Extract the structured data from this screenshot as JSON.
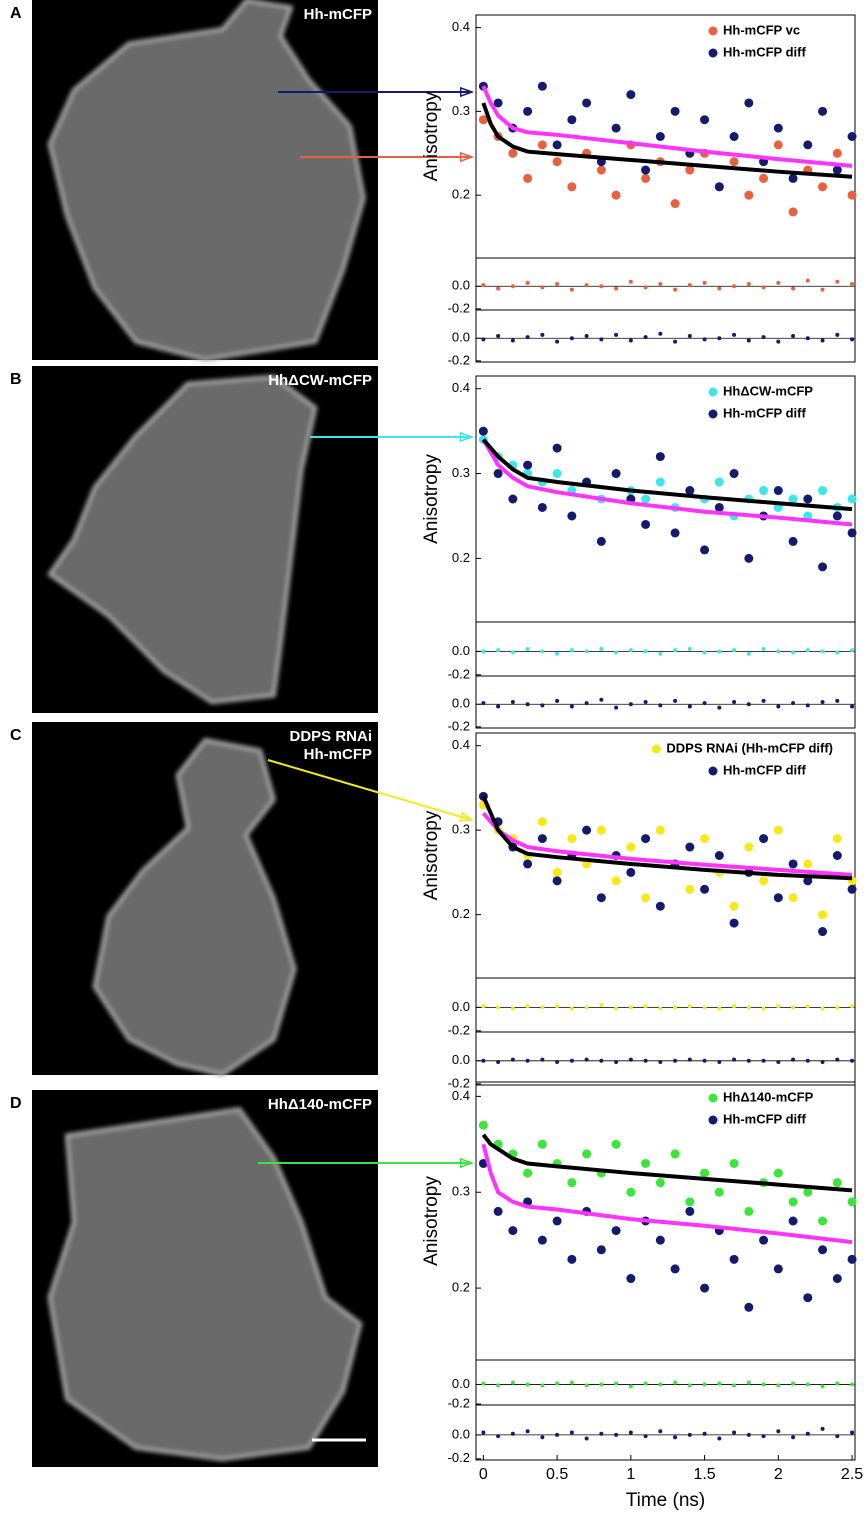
{
  "chart_data": [
    {
      "type": "scatter",
      "panel_label": "A",
      "image_label": [
        "Hh-mCFP"
      ],
      "y_label": "Anisotropy",
      "xlim": [
        -0.05,
        2.52
      ],
      "ylim": [
        0.125,
        0.415
      ],
      "yticks": [
        0.2,
        0.3,
        0.4
      ],
      "x": [
        0,
        0.1,
        0.2,
        0.3,
        0.4,
        0.5,
        0.6,
        0.7,
        0.8,
        0.9,
        1,
        1.1,
        1.2,
        1.3,
        1.4,
        1.5,
        1.6,
        1.7,
        1.8,
        1.9,
        2,
        2.1,
        2.2,
        2.3,
        2.4,
        2.5
      ],
      "series": [
        {
          "name": "Hh-mCFP vc",
          "color": "#e8603c",
          "values": [
            0.29,
            0.27,
            0.25,
            0.22,
            0.26,
            0.24,
            0.21,
            0.25,
            0.23,
            0.2,
            0.26,
            0.22,
            0.24,
            0.19,
            0.23,
            0.25,
            0.21,
            0.24,
            0.2,
            0.22,
            0.26,
            0.18,
            0.23,
            0.21,
            0.25,
            0.2
          ]
        },
        {
          "name": "Hh-mCFP diff",
          "color": "#141a6e",
          "values": [
            0.33,
            0.31,
            0.28,
            0.3,
            0.33,
            0.26,
            0.29,
            0.31,
            0.24,
            0.28,
            0.32,
            0.23,
            0.27,
            0.3,
            0.25,
            0.29,
            0.21,
            0.27,
            0.31,
            0.24,
            0.28,
            0.22,
            0.26,
            0.3,
            0.23,
            0.27
          ]
        }
      ],
      "fit_x": [
        0,
        0.05,
        0.1,
        0.2,
        0.3,
        0.5,
        1,
        1.5,
        2,
        2.5
      ],
      "fits": [
        {
          "color": "#ff33ff",
          "values": [
            0.33,
            0.31,
            0.295,
            0.28,
            0.275,
            0.272,
            0.262,
            0.252,
            0.243,
            0.235
          ]
        },
        {
          "color": "#000000",
          "values": [
            0.31,
            0.285,
            0.27,
            0.258,
            0.252,
            0.249,
            0.242,
            0.235,
            0.228,
            0.222
          ]
        }
      ],
      "residual_ylim": [
        -0.21,
        0.25
      ],
      "residual_yticks": [
        {
          "value": 0,
          "label": "0.0"
        },
        -0.2
      ],
      "residuals": [
        {
          "values": [
            0.01,
            -0.02,
            0.0,
            0.03,
            -0.01,
            0.02,
            -0.03,
            0.01,
            0.0,
            -0.02,
            0.04,
            -0.01,
            0.02,
            -0.03,
            0.01,
            0.03,
            -0.02,
            0.0,
            0.02,
            -0.01,
            0.03,
            -0.02,
            0.05,
            -0.03,
            0.04,
            0.02
          ]
        },
        {
          "values": [
            -0.01,
            0.02,
            -0.02,
            0.01,
            0.03,
            -0.03,
            0.0,
            0.02,
            -0.01,
            0.03,
            -0.02,
            0.01,
            0.04,
            -0.03,
            0.02,
            -0.01,
            0.0,
            0.03,
            -0.02,
            0.01,
            -0.03,
            0.02,
            0.0,
            -0.02,
            0.03,
            -0.01
          ]
        }
      ]
    },
    {
      "type": "scatter",
      "panel_label": "B",
      "image_label": [
        "HhΔCW-mCFP"
      ],
      "y_label": "Anisotropy",
      "xlim": [
        -0.05,
        2.52
      ],
      "ylim": [
        0.125,
        0.415
      ],
      "yticks": [
        0.2,
        0.3,
        0.4
      ],
      "x": [
        0,
        0.1,
        0.2,
        0.3,
        0.4,
        0.5,
        0.6,
        0.7,
        0.8,
        0.9,
        1,
        1.1,
        1.2,
        1.3,
        1.4,
        1.5,
        1.6,
        1.7,
        1.8,
        1.9,
        2,
        2.1,
        2.2,
        2.3,
        2.4,
        2.5
      ],
      "series": [
        {
          "name": "HhΔCW-mCFP",
          "color": "#3ee6ea",
          "values": [
            0.34,
            0.32,
            0.31,
            0.3,
            0.29,
            0.3,
            0.28,
            0.29,
            0.27,
            0.3,
            0.28,
            0.27,
            0.29,
            0.26,
            0.28,
            0.27,
            0.29,
            0.25,
            0.27,
            0.28,
            0.26,
            0.27,
            0.25,
            0.28,
            0.26,
            0.27
          ]
        },
        {
          "name": "Hh-mCFP diff",
          "color": "#141a6e",
          "values": [
            0.35,
            0.3,
            0.27,
            0.31,
            0.26,
            0.33,
            0.25,
            0.29,
            0.22,
            0.3,
            0.27,
            0.24,
            0.32,
            0.23,
            0.28,
            0.21,
            0.26,
            0.3,
            0.2,
            0.25,
            0.28,
            0.22,
            0.27,
            0.19,
            0.25,
            0.23
          ]
        }
      ],
      "fit_x": [
        0,
        0.05,
        0.1,
        0.2,
        0.3,
        0.5,
        1,
        1.5,
        2,
        2.5
      ],
      "fits": [
        {
          "color": "#ff33ff",
          "values": [
            0.34,
            0.325,
            0.31,
            0.295,
            0.285,
            0.278,
            0.265,
            0.255,
            0.248,
            0.24
          ]
        },
        {
          "color": "#000000",
          "values": [
            0.34,
            0.33,
            0.32,
            0.305,
            0.295,
            0.29,
            0.28,
            0.272,
            0.265,
            0.258
          ]
        }
      ],
      "residual_ylim": [
        -0.21,
        0.25
      ],
      "residual_yticks": [
        {
          "value": 0,
          "label": "0.0"
        },
        -0.2
      ],
      "residuals": [
        {
          "values": [
            0.0,
            0.01,
            -0.01,
            0.02,
            0.0,
            -0.02,
            0.01,
            0.0,
            0.02,
            -0.01,
            0.01,
            0.0,
            -0.02,
            0.01,
            0.02,
            -0.01,
            0.0,
            0.01,
            -0.02,
            0.02,
            0.0,
            -0.01,
            0.01,
            0.0,
            -0.01,
            0.01
          ]
        },
        {
          "values": [
            0.01,
            -0.02,
            0.02,
            0.0,
            -0.01,
            0.03,
            -0.02,
            0.01,
            0.04,
            -0.03,
            0.0,
            0.02,
            -0.01,
            0.03,
            -0.02,
            0.01,
            -0.03,
            0.02,
            0.0,
            0.03,
            -0.02,
            0.01,
            -0.01,
            0.02,
            0.03,
            -0.02
          ]
        }
      ]
    },
    {
      "type": "scatter",
      "panel_label": "C",
      "image_label": [
        "DDPS RNAi",
        "Hh-mCFP"
      ],
      "y_label": "Anisotropy",
      "xlim": [
        -0.05,
        2.52
      ],
      "ylim": [
        0.125,
        0.415
      ],
      "yticks": [
        0.2,
        0.3,
        0.4
      ],
      "x": [
        0,
        0.1,
        0.2,
        0.3,
        0.4,
        0.5,
        0.6,
        0.7,
        0.8,
        0.9,
        1,
        1.1,
        1.2,
        1.3,
        1.4,
        1.5,
        1.6,
        1.7,
        1.8,
        1.9,
        2,
        2.1,
        2.2,
        2.3,
        2.4,
        2.5
      ],
      "series": [
        {
          "name": "DDPS RNAi (Hh-mCFP diff)",
          "color": "#f7e81c",
          "values": [
            0.33,
            0.3,
            0.29,
            0.27,
            0.31,
            0.25,
            0.29,
            0.26,
            0.3,
            0.24,
            0.28,
            0.22,
            0.3,
            0.26,
            0.23,
            0.29,
            0.25,
            0.21,
            0.28,
            0.24,
            0.3,
            0.22,
            0.26,
            0.2,
            0.29,
            0.24
          ]
        },
        {
          "name": "Hh-mCFP diff",
          "color": "#141a6e",
          "values": [
            0.34,
            0.31,
            0.28,
            0.26,
            0.29,
            0.24,
            0.27,
            0.3,
            0.22,
            0.27,
            0.25,
            0.29,
            0.21,
            0.26,
            0.28,
            0.23,
            0.27,
            0.19,
            0.25,
            0.29,
            0.22,
            0.26,
            0.24,
            0.18,
            0.27,
            0.23
          ]
        }
      ],
      "fit_x": [
        0,
        0.05,
        0.1,
        0.2,
        0.3,
        0.5,
        1,
        1.5,
        2,
        2.5
      ],
      "fits": [
        {
          "color": "#ff33ff",
          "values": [
            0.32,
            0.31,
            0.3,
            0.288,
            0.28,
            0.275,
            0.266,
            0.259,
            0.253,
            0.247
          ]
        },
        {
          "color": "#000000",
          "values": [
            0.34,
            0.32,
            0.3,
            0.28,
            0.272,
            0.268,
            0.26,
            0.253,
            0.247,
            0.243
          ]
        }
      ],
      "residual_ylim": [
        -0.21,
        0.25
      ],
      "residual_yticks": [
        {
          "value": 0,
          "label": "0.0"
        },
        -0.2
      ],
      "residuals": [
        {
          "values": [
            0.01,
            0.0,
            -0.01,
            0.01,
            0.0,
            0.01,
            -0.01,
            0.0,
            0.02,
            -0.01,
            0.0,
            0.01,
            -0.01,
            0.0,
            0.01,
            0.0,
            -0.01,
            0.01,
            0.0,
            -0.01,
            0.01,
            0.0,
            0.01,
            -0.01,
            0.0,
            0.01
          ]
        },
        {
          "values": [
            0.0,
            -0.01,
            0.01,
            0.0,
            0.01,
            -0.01,
            0.0,
            0.01,
            0.0,
            -0.01,
            0.01,
            0.0,
            -0.01,
            0.0,
            0.01,
            0.0,
            -0.01,
            0.01,
            0.0,
            0.0,
            -0.01,
            0.01,
            0.0,
            -0.01,
            0.01,
            0.0
          ]
        }
      ]
    },
    {
      "type": "scatter",
      "panel_label": "D",
      "image_label": [
        "HhΔ140-mCFP"
      ],
      "y_label": "Anisotropy",
      "x_label": "Time (ns)",
      "xlim": [
        -0.05,
        2.52
      ],
      "ylim": [
        0.125,
        0.415
      ],
      "yticks": [
        0.2,
        0.3,
        0.4
      ],
      "xticks": [
        0,
        0.5,
        1,
        1.5,
        2,
        2.5
      ],
      "x": [
        0,
        0.1,
        0.2,
        0.3,
        0.4,
        0.5,
        0.6,
        0.7,
        0.8,
        0.9,
        1,
        1.1,
        1.2,
        1.3,
        1.4,
        1.5,
        1.6,
        1.7,
        1.8,
        1.9,
        2,
        2.1,
        2.2,
        2.3,
        2.4,
        2.5
      ],
      "series": [
        {
          "name": "HhΔ140-mCFP",
          "color": "#39e639",
          "values": [
            0.37,
            0.35,
            0.34,
            0.32,
            0.35,
            0.33,
            0.31,
            0.34,
            0.32,
            0.35,
            0.3,
            0.33,
            0.31,
            0.34,
            0.29,
            0.32,
            0.3,
            0.33,
            0.28,
            0.31,
            0.32,
            0.29,
            0.3,
            0.27,
            0.31,
            0.29
          ]
        },
        {
          "name": "Hh-mCFP diff",
          "color": "#141a6e",
          "values": [
            0.33,
            0.28,
            0.26,
            0.29,
            0.25,
            0.27,
            0.23,
            0.28,
            0.24,
            0.26,
            0.21,
            0.27,
            0.25,
            0.22,
            0.28,
            0.2,
            0.26,
            0.23,
            0.18,
            0.25,
            0.22,
            0.27,
            0.19,
            0.24,
            0.21,
            0.23
          ]
        }
      ],
      "fit_x": [
        0,
        0.05,
        0.1,
        0.2,
        0.3,
        0.5,
        1,
        1.5,
        2,
        2.5
      ],
      "fits": [
        {
          "color": "#ff33ff",
          "values": [
            0.35,
            0.32,
            0.3,
            0.29,
            0.285,
            0.282,
            0.272,
            0.265,
            0.257,
            0.248
          ]
        },
        {
          "color": "#000000",
          "values": [
            0.36,
            0.35,
            0.345,
            0.335,
            0.33,
            0.327,
            0.32,
            0.314,
            0.308,
            0.302
          ]
        }
      ],
      "residual_ylim": [
        -0.21,
        0.25
      ],
      "residual_yticks": [
        {
          "value": 0,
          "label": "0.0"
        },
        -0.2
      ],
      "residuals": [
        {
          "values": [
            0.01,
            -0.01,
            0.02,
            0.0,
            -0.01,
            0.01,
            0.02,
            -0.01,
            0.0,
            0.01,
            -0.02,
            0.01,
            0.0,
            0.02,
            -0.01,
            0.0,
            0.01,
            -0.01,
            0.02,
            0.0,
            -0.01,
            0.01,
            0.0,
            -0.02,
            0.01,
            0.0
          ]
        },
        {
          "values": [
            0.02,
            -0.01,
            0.01,
            0.03,
            -0.02,
            0.0,
            0.02,
            -0.03,
            0.01,
            0.0,
            0.02,
            -0.01,
            0.03,
            -0.02,
            0.0,
            0.01,
            -0.03,
            0.02,
            0.0,
            -0.01,
            0.03,
            -0.02,
            0.01,
            0.05,
            -0.01,
            0.02
          ]
        }
      ]
    }
  ]
}
